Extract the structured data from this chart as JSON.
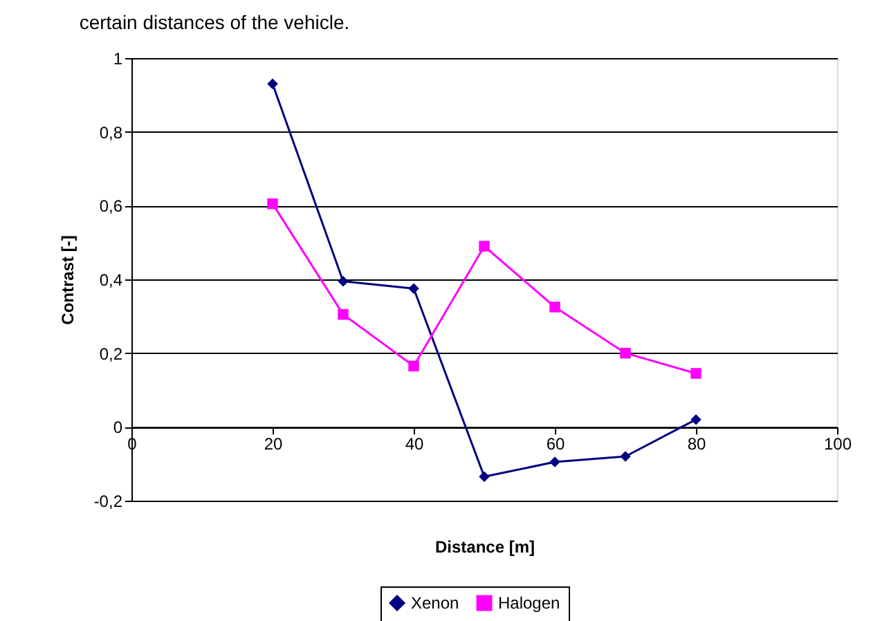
{
  "chart_data": {
    "type": "line",
    "xlabel": "Distance [m]",
    "ylabel": "Contrast [-]",
    "annotations": [
      "certain distances of the vehicle."
    ],
    "x": [
      20,
      30,
      40,
      50,
      60,
      70,
      80
    ],
    "series": [
      {
        "name": "Xenon",
        "color": "#000080",
        "marker": "diamond",
        "values": [
          0.93,
          0.395,
          0.375,
          -0.135,
          -0.095,
          -0.08,
          0.02
        ]
      },
      {
        "name": "Halogen",
        "color": "#ff00ff",
        "marker": "square",
        "values": [
          0.605,
          0.305,
          0.165,
          0.49,
          0.325,
          0.2,
          0.145
        ]
      }
    ],
    "xlim": [
      0,
      100
    ],
    "xticks": [
      0,
      20,
      40,
      60,
      80,
      100
    ],
    "ylim": [
      -0.2,
      1
    ],
    "yticks": [
      {
        "value": -0.2,
        "label": "-0,2"
      },
      {
        "value": 0,
        "label": "0"
      },
      {
        "value": 0.2,
        "label": "0,2"
      },
      {
        "value": 0.4,
        "label": "0,4"
      },
      {
        "value": 0.6,
        "label": "0,6"
      },
      {
        "value": 0.8,
        "label": "0,8"
      },
      {
        "value": 1,
        "label": "1"
      }
    ],
    "grid": "y",
    "legend": "bottom",
    "line_style": "solid"
  }
}
